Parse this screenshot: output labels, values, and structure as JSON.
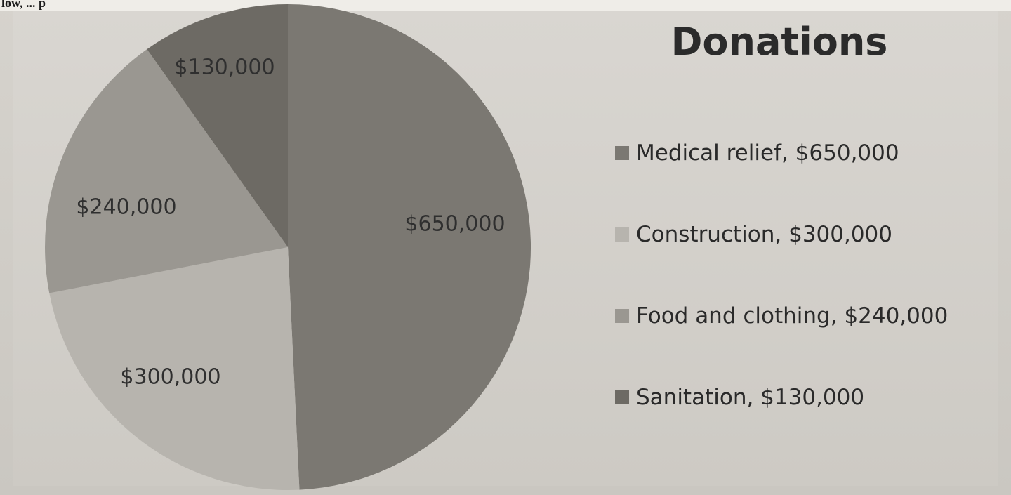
{
  "chart_data": {
    "type": "pie",
    "title": "Donations",
    "categories": [
      "Medical relief",
      "Construction",
      "Food and clothing",
      "Sanitation"
    ],
    "values": [
      650000,
      300000,
      240000,
      130000
    ],
    "slice_labels": [
      "$650,000",
      "$300,000",
      "$240,000",
      "$130,000"
    ],
    "legend_entries": [
      "Medical relief, $650,000",
      "Construction, $300,000",
      "Food and clothing, $240,000",
      "Sanitation, $130,000"
    ],
    "colors": [
      "#7b7872",
      "#b7b4ae",
      "#9a9791",
      "#6d6a64"
    ],
    "legend_placement": "right",
    "start_angle_deg": 0,
    "direction": "clockwise"
  }
}
